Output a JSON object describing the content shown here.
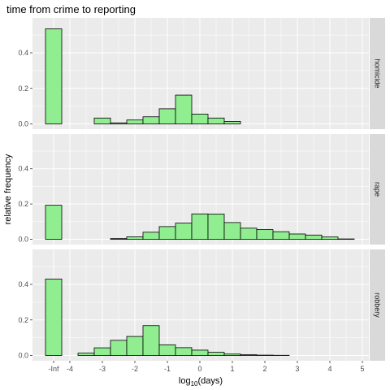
{
  "chart_data": {
    "type": "bar",
    "title": "time from crime to reporting",
    "xlabel": "log",
    "xlabel_subscript": "10",
    "xlabel_suffix": "(days)",
    "ylabel": "relative frequency",
    "x_ticks": [
      "-Inf",
      "-4",
      "-3",
      "-2",
      "-1",
      "0",
      "1",
      "2",
      "3",
      "4",
      "5"
    ],
    "y_ticks": [
      "0.0",
      "0.2",
      "0.4"
    ],
    "ylim": [
      0,
      0.56
    ],
    "xlim": [
      -5.0,
      5.0
    ],
    "bin_width": 0.5,
    "inf_bar": {
      "x": -4.85,
      "width": 0.5
    },
    "facets": [
      {
        "name": "homicide",
        "inf_value": 0.535,
        "bins": [
          {
            "x": -3.5,
            "value": 0.0
          },
          {
            "x": -3.0,
            "value": 0.033
          },
          {
            "x": -2.5,
            "value": 0.006
          },
          {
            "x": -2.0,
            "value": 0.022
          },
          {
            "x": -1.5,
            "value": 0.04
          },
          {
            "x": -1.0,
            "value": 0.085
          },
          {
            "x": -0.5,
            "value": 0.162
          },
          {
            "x": 0.0,
            "value": 0.055
          },
          {
            "x": 0.5,
            "value": 0.033
          },
          {
            "x": 1.0,
            "value": 0.014
          },
          {
            "x": 1.5,
            "value": 0.0
          },
          {
            "x": 2.0,
            "value": 0.0
          },
          {
            "x": 2.5,
            "value": 0.0
          },
          {
            "x": 3.0,
            "value": 0.0
          },
          {
            "x": 3.5,
            "value": 0.0
          },
          {
            "x": 4.0,
            "value": 0.0
          },
          {
            "x": 4.5,
            "value": 0.0
          }
        ]
      },
      {
        "name": "rape",
        "inf_value": 0.193,
        "bins": [
          {
            "x": -3.5,
            "value": 0.0
          },
          {
            "x": -3.0,
            "value": 0.0
          },
          {
            "x": -2.5,
            "value": 0.004
          },
          {
            "x": -2.0,
            "value": 0.014
          },
          {
            "x": -1.5,
            "value": 0.04
          },
          {
            "x": -1.0,
            "value": 0.072
          },
          {
            "x": -0.5,
            "value": 0.092
          },
          {
            "x": 0.0,
            "value": 0.144
          },
          {
            "x": 0.5,
            "value": 0.143
          },
          {
            "x": 1.0,
            "value": 0.095
          },
          {
            "x": 1.5,
            "value": 0.063
          },
          {
            "x": 2.0,
            "value": 0.055
          },
          {
            "x": 2.5,
            "value": 0.043
          },
          {
            "x": 3.0,
            "value": 0.03
          },
          {
            "x": 3.5,
            "value": 0.024
          },
          {
            "x": 4.0,
            "value": 0.013
          },
          {
            "x": 4.5,
            "value": 0.002
          }
        ]
      },
      {
        "name": "robbery",
        "inf_value": 0.43,
        "bins": [
          {
            "x": -3.5,
            "value": 0.013
          },
          {
            "x": -3.0,
            "value": 0.043
          },
          {
            "x": -2.5,
            "value": 0.085
          },
          {
            "x": -2.0,
            "value": 0.107
          },
          {
            "x": -1.5,
            "value": 0.168
          },
          {
            "x": -1.0,
            "value": 0.06
          },
          {
            "x": -0.5,
            "value": 0.044
          },
          {
            "x": 0.0,
            "value": 0.03
          },
          {
            "x": 0.5,
            "value": 0.018
          },
          {
            "x": 1.0,
            "value": 0.008
          },
          {
            "x": 1.5,
            "value": 0.004
          },
          {
            "x": 2.0,
            "value": 0.002
          },
          {
            "x": 2.5,
            "value": 0.001
          },
          {
            "x": 3.0,
            "value": 0.0
          },
          {
            "x": 3.5,
            "value": 0.0
          },
          {
            "x": 4.0,
            "value": 0.0
          },
          {
            "x": 4.5,
            "value": 0.0
          }
        ]
      }
    ],
    "colors": {
      "bar_fill": "#90EE90",
      "bar_stroke": "#000000",
      "panel_bg": "#EBEBEB",
      "grid": "#FFFFFF",
      "strip_bg": "#D9D9D9"
    },
    "grid": true,
    "legend": "none"
  }
}
